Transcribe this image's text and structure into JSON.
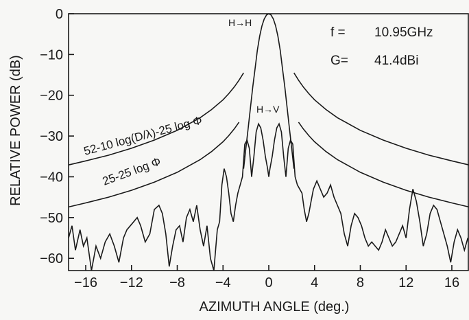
{
  "chart_data": {
    "type": "line",
    "title": "",
    "xlabel": "AZIMUTH ANGLE (deg.)",
    "ylabel": "RELATIVE POWER (dB)",
    "xlim": [
      -17.5,
      17.5
    ],
    "ylim": [
      -63,
      0
    ],
    "xticks": [
      -16,
      -12,
      -8,
      -4,
      0,
      4,
      8,
      12,
      16
    ],
    "xtick_labels": [
      "−16",
      "−12",
      "−8",
      "−4",
      "0",
      "4",
      "8",
      "12",
      "16"
    ],
    "yticks": [
      0,
      -10,
      -20,
      -30,
      -40,
      -50,
      -60
    ],
    "ytick_labels": [
      "0",
      "−10",
      "−20",
      "−30",
      "−40",
      "−50",
      "−60"
    ],
    "grid": false,
    "info": {
      "freq_label": "f =",
      "freq_value": "10.95GHz",
      "gain_label": "G=",
      "gain_value": "41.4dBi"
    },
    "series": [
      {
        "name": "H→H",
        "x": [
          -2.2,
          -2.0,
          -1.8,
          -1.6,
          -1.4,
          -1.2,
          -1.0,
          -0.8,
          -0.6,
          -0.4,
          -0.2,
          0.0,
          0.2,
          0.4,
          0.6,
          0.8,
          1.0,
          1.2,
          1.4,
          1.6,
          1.8,
          2.0,
          2.2
        ],
        "y": [
          -38,
          -33,
          -28,
          -23,
          -18,
          -13.5,
          -9,
          -5.5,
          -3,
          -1.3,
          -0.3,
          0,
          -0.3,
          -1.3,
          -3,
          -5.5,
          -9,
          -13.5,
          -18,
          -23,
          -28,
          -33,
          -38
        ]
      },
      {
        "name": "H→V",
        "x": [
          -17.5,
          -17.2,
          -16.9,
          -16.5,
          -16.2,
          -15.9,
          -15.5,
          -15.1,
          -14.7,
          -14.3,
          -13.9,
          -13.5,
          -13.1,
          -12.7,
          -12.4,
          -12.1,
          -11.8,
          -11.5,
          -11.2,
          -10.8,
          -10.4,
          -10.0,
          -9.6,
          -9.3,
          -9.0,
          -8.7,
          -8.4,
          -8.1,
          -7.8,
          -7.5,
          -7.2,
          -6.9,
          -6.6,
          -6.3,
          -6.0,
          -5.7,
          -5.4,
          -5.1,
          -4.8,
          -4.5,
          -4.3,
          -4.1,
          -3.9,
          -3.7,
          -3.5,
          -3.3,
          -3.1,
          -2.9,
          -2.7,
          -2.5,
          -2.3,
          -2.1,
          -1.9,
          -1.7,
          -1.5,
          -1.3,
          -1.1,
          -0.9,
          -0.7,
          -0.5,
          -0.3,
          -0.1,
          0.0,
          0.1,
          0.3,
          0.5,
          0.7,
          0.9,
          1.1,
          1.3,
          1.5,
          1.7,
          1.9,
          2.1,
          2.3,
          2.5,
          2.7,
          2.9,
          3.1,
          3.3,
          3.5,
          3.7,
          3.9,
          4.2,
          4.5,
          4.8,
          5.1,
          5.4,
          5.7,
          6.0,
          6.3,
          6.6,
          6.9,
          7.2,
          7.5,
          7.8,
          8.1,
          8.4,
          8.7,
          9.0,
          9.3,
          9.6,
          9.9,
          10.2,
          10.5,
          10.8,
          11.1,
          11.4,
          11.7,
          12.0,
          12.3,
          12.6,
          12.9,
          13.2,
          13.5,
          13.8,
          14.1,
          14.4,
          14.7,
          15.0,
          15.3,
          15.6,
          15.9,
          16.2,
          16.5,
          16.8,
          17.1,
          17.4
        ],
        "y": [
          -55,
          -52,
          -58,
          -53,
          -57,
          -55,
          -63,
          -57,
          -60,
          -56,
          -54,
          -57,
          -61,
          -55,
          -53,
          -52,
          -51,
          -50,
          -52,
          -56,
          -54,
          -48,
          -47,
          -49,
          -54,
          -62,
          -57,
          -53,
          -52,
          -56,
          -50,
          -48,
          -51,
          -47,
          -53,
          -57,
          -52,
          -60,
          -63,
          -53,
          -51,
          -42,
          -38,
          -40,
          -44,
          -49,
          -51,
          -47,
          -44,
          -42,
          -40,
          -32,
          -31,
          -33,
          -40,
          -35,
          -29,
          -27,
          -28,
          -31,
          -35,
          -38,
          -40,
          -38,
          -35,
          -31,
          -28,
          -27,
          -29,
          -35,
          -40,
          -33,
          -31,
          -32,
          -40,
          -42,
          -43,
          -44,
          -48,
          -51,
          -49,
          -46,
          -43,
          -41,
          -43,
          -45,
          -44,
          -42,
          -45,
          -47,
          -49,
          -54,
          -57,
          -52,
          -49,
          -50,
          -52,
          -55,
          -57,
          -56,
          -57,
          -58,
          -56,
          -53,
          -55,
          -57,
          -56,
          -54,
          -52,
          -55,
          -48,
          -43,
          -46,
          -51,
          -57,
          -54,
          -49,
          -47,
          -48,
          -51,
          -54,
          -57,
          -61,
          -56,
          -53,
          -55,
          -58,
          -55
        ]
      },
      {
        "name": "52-10 log(D/λ)-25 log Φ",
        "function": "envelope_upper",
        "x": [
          -17.5,
          -16,
          -14,
          -12,
          -10,
          -8,
          -6,
          -5,
          -4,
          -3.5,
          -3,
          -2.6,
          -2.2,
          2.2,
          2.6,
          3,
          3.5,
          4,
          5,
          6,
          8,
          10,
          12,
          14,
          16,
          17.5
        ],
        "y": [
          -37.1,
          -36.1,
          -34.7,
          -33.0,
          -31.0,
          -28.6,
          -25.5,
          -23.5,
          -21.1,
          -19.6,
          -17.9,
          -16.3,
          -14.5,
          -14.5,
          -16.3,
          -17.9,
          -19.6,
          -21.1,
          -23.5,
          -25.5,
          -28.6,
          -31.0,
          -33.0,
          -34.7,
          -36.1,
          -37.1
        ]
      },
      {
        "name": "25-25 log Φ",
        "function": "envelope_lower",
        "x": [
          -17.5,
          -16,
          -14,
          -12,
          -10,
          -8,
          -6,
          -5,
          -4,
          -3.5,
          -3,
          -2.6,
          2.6,
          3,
          3.5,
          4,
          5,
          6,
          8,
          10,
          12,
          14,
          16,
          17.5
        ],
        "y": [
          -47.4,
          -46.4,
          -45.0,
          -43.3,
          -41.3,
          -38.9,
          -35.8,
          -33.8,
          -31.4,
          -29.9,
          -28.2,
          -26.6,
          -26.6,
          -28.2,
          -29.9,
          -31.4,
          -33.8,
          -35.8,
          -38.9,
          -41.3,
          -43.3,
          -45.0,
          -46.4,
          -47.4
        ]
      }
    ],
    "annotations": {
      "hh": "H→H",
      "hv": "H→V",
      "upper_envelope": "52-10 log(D/λ)-25 log Φ",
      "lower_envelope": "25-25 log Φ"
    }
  }
}
